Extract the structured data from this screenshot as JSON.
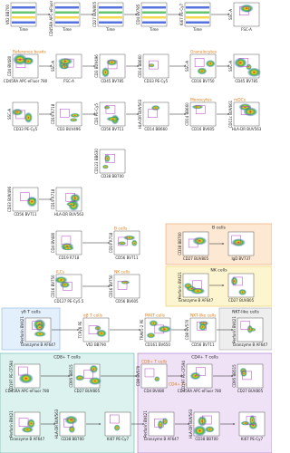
{
  "panels": [
    {
      "y_label": "Vδ2 BB700",
      "x_label": "Time"
    },
    {
      "y_label": "CD45RA APC-eFluor 780",
      "x_label": "Time"
    },
    {
      "y_label": "CD27 BUV805",
      "x_label": "Time"
    },
    {
      "y_label": "CD4 BV785",
      "x_label": "Time"
    },
    {
      "y_label": "Ki67 PE-Cy7",
      "x_label": "Time"
    },
    {
      "y_label": "SSC-A",
      "x_label": "FSC-A"
    },
    {
      "y_label": "CD4 BV480",
      "x_label": "CD45RA APC-eFluor 780",
      "gates": [
        "Reference beads"
      ]
    },
    {
      "y_label": "SSC-A",
      "x_label": "FSC-A"
    },
    {
      "y_label": "CD3 BUV496",
      "x_label": "CD45 BV785"
    },
    {
      "y_label": "CD14 BB660",
      "x_label": "CD33 PE-Cy5"
    },
    {
      "y_label": "SSC-A",
      "x_label": "CD16 BV750",
      "gates": [
        "Granulocytes"
      ]
    },
    {
      "y_label": "SSC-A",
      "x_label": "CD45 BV785"
    },
    {
      "y_label": "SSC-A",
      "x_label": "CD33 PE-Cy5"
    },
    {
      "y_label": "CD19 R718",
      "x_label": "CD3 BUV496"
    },
    {
      "y_label": "CD3 PE-Cy5",
      "x_label": "CD56 BV711"
    },
    {
      "y_label": "HLA-DR BUV563",
      "x_label": "CD14 BB660"
    },
    {
      "y_label": "CD14 BB660",
      "x_label": "CD16 BV605",
      "gates": [
        "Monocytes"
      ]
    },
    {
      "y_label": "CD11c BUV661",
      "x_label": "HLA-DR BUV563",
      "gates": [
        "mDCs"
      ]
    },
    {
      "y_label": "CD123 BB630",
      "x_label": "CD38 BB700"
    },
    {
      "y_label": "CD33 BUV496",
      "x_label": "CD56 BV711"
    },
    {
      "y_label": "CD19 R718",
      "x_label": "HLA-DR BUV563"
    },
    {
      "y_label": "CD4 BV480",
      "x_label": "CD19 R718"
    },
    {
      "y_label": "CD19 R718",
      "x_label": "CD56 BV711",
      "gates": [
        "B cells"
      ]
    },
    {
      "y_label": "CD38 BB700",
      "x_label": "CD27 BUV805"
    },
    {
      "x_label": "IgD BV737"
    },
    {
      "y_label": "CD16 BV750",
      "x_label": "CD127 PE-Cy5.5",
      "gates": [
        "ILCs"
      ]
    },
    {
      "y_label": "CD16 BV750",
      "x_label": "CD56 BV605",
      "gates": [
        "NK cells"
      ]
    },
    {
      "y_label": "Perforin BV421",
      "x_label": "Granzyme B AF647"
    },
    {
      "x_label": "CD27 BUV805"
    },
    {
      "y_label": "Perforin BV421",
      "x_label": "Granzyme B AF647"
    },
    {
      "y_label": "TCRγδ PE",
      "x_label": "Vδ2 BB790",
      "gates": [
        "αβ T cells"
      ]
    },
    {
      "y_label": "TRAV1-2 PE",
      "x_label": "CD161 BV650",
      "gates": [
        "MAIT cells"
      ]
    },
    {
      "y_label": "CD8 BV570",
      "x_label": "CD56 BV711",
      "gates": [
        "NKT-like cells"
      ]
    },
    {
      "y_label": "Perforin BV421",
      "x_label": "Granzyme B AF647"
    },
    {
      "y_label": "CD197 PE-CF594",
      "x_label": "CD45RA APC-eFluor 780"
    },
    {
      "y_label": "CD95 BB515",
      "x_label": "CD27 BUV805"
    },
    {
      "y_label": "CD8 BV570",
      "x_label": "CD4 BV480",
      "gates": [
        "CD8+ T cells",
        "CD4+ T cells"
      ]
    },
    {
      "y_label": "CD197 PE-CF594",
      "x_label": "CD45RA APC-eFluor 780"
    },
    {
      "y_label": "CD95 BB515",
      "x_label": "CD27 BUV805"
    },
    {
      "y_label": "Perforin BV421",
      "x_label": "Granzyme B AF647"
    },
    {
      "y_label": "HLA-DR BUV563",
      "x_label": "CD38 BB700"
    },
    {
      "x_label": "Ki67 PE-Cy7"
    },
    {
      "y_label": "Perforin BV421",
      "x_label": "Granzyme B AF647"
    },
    {
      "y_label": "HLA-DR BUV563",
      "x_label": "CD38 BB700"
    },
    {
      "x_label": "Ki67 PE-Cy7"
    }
  ],
  "boxes": [
    {
      "title": "B cells"
    },
    {
      "title": "NK cells"
    },
    {
      "title": "γδ T cells"
    },
    {
      "title": "NKT-like cells"
    },
    {
      "title": "CD8+ T cells"
    },
    {
      "title": "CD4+ T cells"
    }
  ]
}
